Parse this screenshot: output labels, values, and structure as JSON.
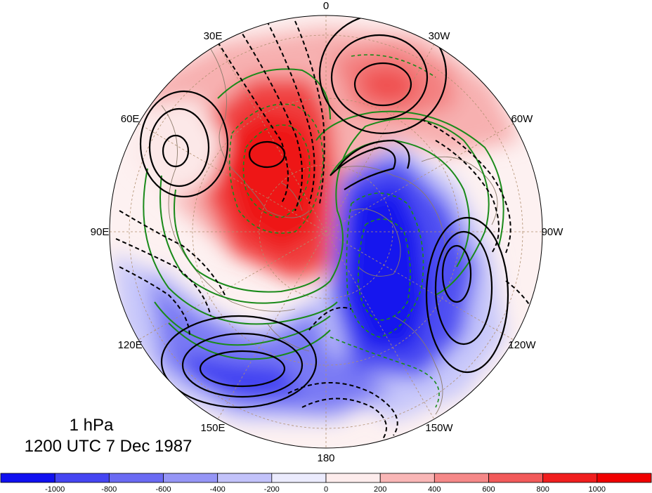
{
  "map": {
    "projection": "north-polar-stereographic",
    "longitude_labels": [
      {
        "text": "0",
        "lon": 0
      },
      {
        "text": "30W",
        "lon": -30
      },
      {
        "text": "60W",
        "lon": -60
      },
      {
        "text": "90W",
        "lon": -90
      },
      {
        "text": "120W",
        "lon": -120
      },
      {
        "text": "150W",
        "lon": -150
      },
      {
        "text": "180",
        "lon": 180
      },
      {
        "text": "150E",
        "lon": 150
      },
      {
        "text": "120E",
        "lon": 120
      },
      {
        "text": "90E",
        "lon": 90
      },
      {
        "text": "60E",
        "lon": 60
      },
      {
        "text": "30E",
        "lon": 30
      }
    ],
    "colors": {
      "negative_strong": "#1010f0",
      "positive_strong": "#f01010",
      "solid_contour": "#000000",
      "dashed_contour": "#000000",
      "green_contour": "#1a8a1a",
      "coastline": "#8a7a6a",
      "grid": "#b09070"
    }
  },
  "labels": {
    "level": "1 hPa",
    "datetime": "1200 UTC 7 Dec 1987"
  },
  "colorbar": {
    "tick_labels": [
      "-1000",
      "-800",
      "-600",
      "-400",
      "-200",
      "0",
      "200",
      "400",
      "600",
      "800",
      "1000"
    ],
    "colors": [
      "#1010f0",
      "#4545f2",
      "#6a6af3",
      "#9595f6",
      "#c2c2fa",
      "#ebebfd",
      "#fdecec",
      "#f9b6b6",
      "#f58888",
      "#f25a5a",
      "#f01e1e",
      "#f00000"
    ]
  }
}
